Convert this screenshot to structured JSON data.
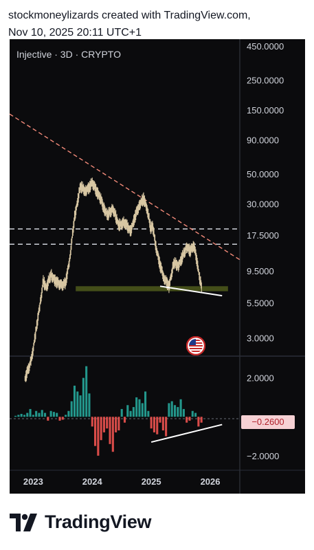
{
  "header": {
    "line1": "stockmoneylizards created with TradingView.com,",
    "line2": "Nov 10, 2025 20:11 UTC+1"
  },
  "footer": {
    "brand": "TradingView"
  },
  "colors": {
    "up": "#26a69a",
    "down": "#ef5350",
    "price_candle": "#d8c7a3",
    "support_zone": "#4f5a1c",
    "trendline": "#f48b7a",
    "divergence_line": "#ffffff",
    "badge_bg": "#f6d1d4",
    "badge_text": "#b0202a"
  },
  "icons": {
    "flag": "us-flag-icon",
    "logo": "tradingview-logo-icon"
  },
  "chart_data": [
    {
      "type": "line",
      "title": "Injective · 3D · CRYPTO",
      "xlabel": "",
      "ylabel": "",
      "yscale": "log",
      "ylim": [
        2.2,
        460
      ],
      "xlim": [
        2022.6,
        2026.5
      ],
      "x_ticks": [
        "2023",
        "2024",
        "2025",
        "2026"
      ],
      "y_ticks": [
        "450.0000",
        "250.0000",
        "150.0000",
        "90.0000",
        "50.0000",
        "30.0000",
        "17.5000",
        "9.5000",
        "5.5000",
        "3.0000"
      ],
      "y_tick_values": [
        450,
        250,
        150,
        90,
        50,
        30,
        17.5,
        9.5,
        5.5,
        3.0
      ],
      "series": [
        {
          "x": [
            2022.86,
            2022.97,
            2023.05,
            2023.12,
            2023.17,
            2023.22,
            2023.3,
            2023.38,
            2023.48,
            2023.55,
            2023.62,
            2023.7,
            2023.8,
            2023.88,
            2023.95,
            2024.0,
            2024.08,
            2024.12,
            2024.2,
            2024.26,
            2024.35,
            2024.45,
            2024.55,
            2024.65,
            2024.72,
            2024.8,
            2024.87,
            2024.93,
            2024.99,
            2025.02,
            2025.08,
            2025.15,
            2025.22,
            2025.3,
            2025.38,
            2025.46,
            2025.52,
            2025.6,
            2025.66,
            2025.72,
            2025.78,
            2025.82,
            2025.86
          ],
          "values": [
            1.5,
            2.1,
            3.5,
            5.6,
            8.0,
            7.2,
            9.0,
            8.0,
            7.5,
            7.8,
            12.0,
            24.0,
            41.0,
            38.0,
            40.0,
            44.0,
            37.0,
            35.0,
            28.0,
            25.0,
            28.0,
            21.0,
            22.0,
            19.0,
            24.0,
            30.0,
            33.0,
            28.0,
            20.0,
            21.0,
            14.5,
            10.5,
            8.5,
            7.3,
            11.0,
            10.5,
            12.0,
            14.5,
            13.5,
            15.0,
            11.0,
            8.5,
            6.9
          ]
        }
      ],
      "annotations": {
        "support_zone": [
          6.7,
          7.3
        ],
        "dashed_levels": [
          19.5,
          15.0
        ],
        "descending_trendline": {
          "from": [
            2022.6,
            140
          ],
          "to": [
            2026.5,
            11.5
          ]
        },
        "price_support_line": {
          "from": [
            2025.15,
            7.3
          ],
          "to": [
            2026.2,
            6.2
          ]
        }
      }
    },
    {
      "type": "bar",
      "title": "",
      "xlabel": "",
      "ylabel": "",
      "ylim": [
        -2.5,
        2.8
      ],
      "y_ticks": [
        "2.0000",
        "−2.0000"
      ],
      "y_tick_values": [
        2.0,
        -2.0
      ],
      "current_value": "−0.2600",
      "current_value_num": -0.26,
      "x": [
        2022.7,
        2022.75,
        2022.8,
        2022.85,
        2022.9,
        2022.95,
        2023.0,
        2023.05,
        2023.1,
        2023.15,
        2023.2,
        2023.25,
        2023.3,
        2023.35,
        2023.4,
        2023.45,
        2023.5,
        2023.55,
        2023.6,
        2023.65,
        2023.7,
        2023.75,
        2023.8,
        2023.85,
        2023.9,
        2023.95,
        2024.0,
        2024.05,
        2024.1,
        2024.15,
        2024.2,
        2024.25,
        2024.3,
        2024.35,
        2024.4,
        2024.45,
        2024.5,
        2024.55,
        2024.6,
        2024.65,
        2024.7,
        2024.75,
        2024.8,
        2024.85,
        2024.9,
        2024.95,
        2025.0,
        2025.05,
        2025.1,
        2025.15,
        2025.2,
        2025.25,
        2025.3,
        2025.35,
        2025.4,
        2025.45,
        2025.5,
        2025.55,
        2025.6,
        2025.65,
        2025.7,
        2025.75,
        2025.8,
        2025.85
      ],
      "values": [
        0.05,
        0.1,
        0.15,
        0.1,
        0.2,
        0.4,
        0.1,
        0.3,
        0.2,
        0.35,
        0.2,
        -0.2,
        0.3,
        0.25,
        0.2,
        -0.2,
        -0.15,
        0.1,
        0.3,
        0.8,
        1.6,
        1.3,
        1.1,
        2.0,
        2.6,
        1.2,
        -0.5,
        -1.5,
        -2.0,
        -1.2,
        -0.8,
        -0.6,
        -1.4,
        -1.8,
        -0.8,
        -0.7,
        0.4,
        -0.3,
        0.6,
        0.3,
        0.5,
        1.0,
        0.9,
        0.7,
        1.3,
        0.3,
        -0.6,
        -0.8,
        -0.9,
        -0.3,
        -0.7,
        -1.0,
        0.7,
        0.8,
        0.6,
        0.5,
        0.9,
        0.4,
        -0.3,
        -0.2,
        0.3,
        0.2,
        -0.5,
        -0.3
      ],
      "annotations": {
        "divergence_line": {
          "from": [
            2025.0,
            -1.3
          ],
          "to": [
            2026.2,
            -0.4
          ]
        }
      }
    }
  ]
}
